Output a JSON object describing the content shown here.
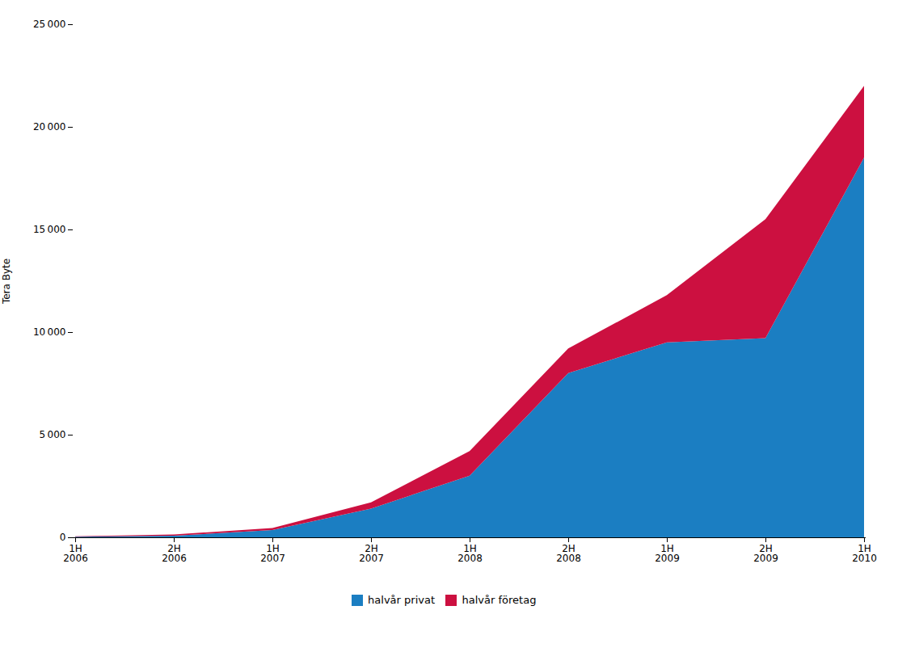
{
  "chart_data": {
    "type": "area",
    "stacked": true,
    "categories": [
      "1H\n2006",
      "2H\n2006",
      "1H\n2007",
      "2H\n2007",
      "1H\n2008",
      "2H\n2008",
      "1H\n2009",
      "2H\n2009",
      "1H\n2010"
    ],
    "series": [
      {
        "name": "halvår privat",
        "color": "#1B7EC2",
        "values": [
          30,
          80,
          350,
          1400,
          3000,
          8000,
          9500,
          9700,
          18500
        ]
      },
      {
        "name": "halvår företag",
        "color": "#CC1040",
        "values": [
          20,
          60,
          100,
          300,
          1200,
          1200,
          2300,
          5800,
          3500
        ]
      }
    ],
    "y_label": "Tera Byte",
    "ylim": [
      0,
      25000
    ],
    "yticks": [
      0,
      {
        "value": 5000,
        "label": "5 000"
      },
      {
        "value": 10000,
        "label": "10 000"
      },
      {
        "value": 15000,
        "label": "15 000"
      },
      {
        "value": 20000,
        "label": "20 000"
      },
      {
        "value": 25000,
        "label": "25 000"
      }
    ],
    "grid": false,
    "legend": "bottom"
  }
}
